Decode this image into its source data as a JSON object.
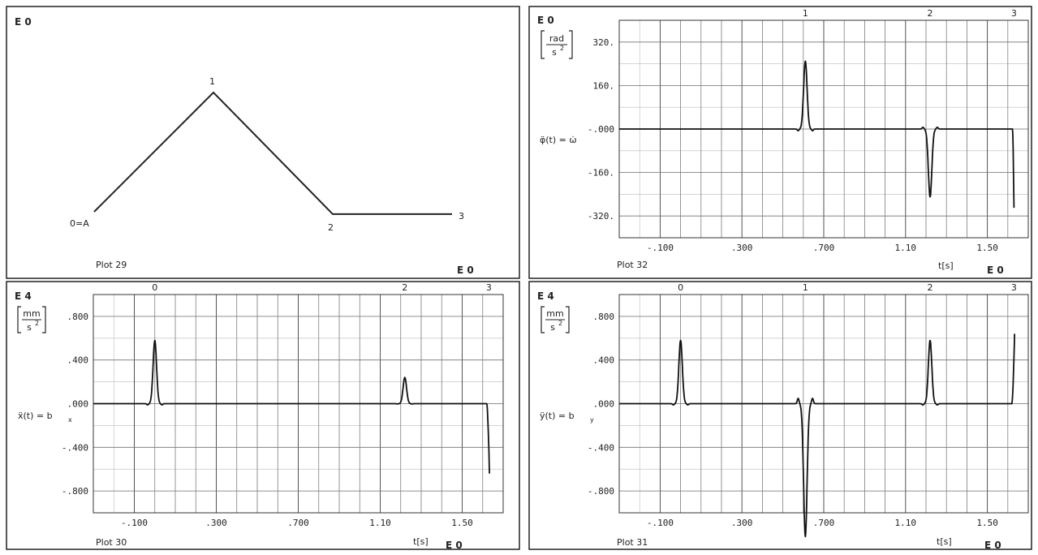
{
  "charts": {
    "plot29": {
      "type": "line",
      "plot_label": "Plot 29",
      "exp_top": "E 0",
      "exp_bottom": "E 0",
      "points": [
        {
          "label": "0=A",
          "x": 0,
          "y": 0
        },
        {
          "label": "1",
          "x": 1,
          "y": 1
        },
        {
          "label": "2",
          "x": 2,
          "y": -0.02
        },
        {
          "label": "3",
          "x": 3,
          "y": -0.02
        }
      ]
    },
    "plot32": {
      "type": "line",
      "plot_label": "Plot 32",
      "exp_top": "E 0",
      "exp_bottom": "E 0",
      "unit_num": "rad",
      "unit_den": "s",
      "unit_den_exp": "2",
      "ylabel": "φ̈(t) = ω̇",
      "xlabel": "t[s]",
      "ylim": [
        -400,
        400
      ],
      "y_ticks": [
        320,
        160,
        0,
        -160,
        -320
      ],
      "y_tick_labels": [
        "320.",
        "160.",
        "-.000",
        "-160.",
        "-320."
      ],
      "xlim": [
        -0.3,
        1.7
      ],
      "x_ticks": [
        -0.1,
        0.3,
        0.7,
        1.1,
        1.5
      ],
      "x_tick_labels": [
        "-.100",
        ".300",
        ".700",
        "1.10",
        "1.50"
      ],
      "markers": [
        {
          "label": "1",
          "x": 0.61
        },
        {
          "label": "2",
          "x": 1.22
        },
        {
          "label": "3",
          "x": 1.63
        }
      ],
      "pulses": [
        {
          "center": 0.61,
          "amp": 250,
          "side_dip": 0.025
        },
        {
          "center": 1.22,
          "amp": -250,
          "side_dip": 0.025
        }
      ],
      "end_drop": {
        "start": 1.623,
        "end": 1.63,
        "end_value": -290
      },
      "end_x": 1.63
    },
    "plot30": {
      "type": "line",
      "plot_label": "Plot 30",
      "exp_top": "E 4",
      "exp_bottom": "E 0",
      "unit_num": "mm",
      "unit_den": "s",
      "unit_den_exp": "2",
      "ylabel": "ẍ(t) = b",
      "ylabel_sub": "x",
      "xlabel": "t[s]",
      "ylim": [
        -1.0,
        1.0
      ],
      "y_ticks": [
        0.8,
        0.4,
        0,
        -0.4,
        -0.8
      ],
      "y_tick_labels": [
        ".800",
        ".400",
        ".000",
        "-.400",
        "-.800"
      ],
      "xlim": [
        -0.3,
        1.7
      ],
      "x_ticks": [
        -0.1,
        0.3,
        0.7,
        1.1,
        1.5
      ],
      "x_tick_labels": [
        "-.100",
        ".300",
        ".700",
        "1.10",
        "1.50"
      ],
      "markers": [
        {
          "label": "0",
          "x": 0.0
        },
        {
          "label": "2",
          "x": 1.22
        },
        {
          "label": "3",
          "x": 1.63
        }
      ],
      "pulses": [
        {
          "center": 0.0,
          "amp": 0.58,
          "side_dip": 0.02
        },
        {
          "center": 1.22,
          "amp": 0.24,
          "side_dip": 0.01
        }
      ],
      "end_drop": {
        "start": 1.62,
        "end": 1.633,
        "end_value": -0.64
      },
      "end_x": 1.633
    },
    "plot31": {
      "type": "line",
      "plot_label": "Plot 31",
      "exp_top": "E 4",
      "exp_bottom": "E 0",
      "unit_num": "mm",
      "unit_den": "s",
      "unit_den_exp": "2",
      "ylabel": "ÿ(t) = b",
      "ylabel_sub": "y",
      "xlabel": "t[s]",
      "ylim": [
        -1.0,
        1.0
      ],
      "y_ticks": [
        0.8,
        0.4,
        0,
        -0.4,
        -0.8
      ],
      "y_tick_labels": [
        ".800",
        ".400",
        ".000",
        "-.400",
        "-.800"
      ],
      "xlim": [
        -0.3,
        1.7
      ],
      "x_ticks": [
        -0.1,
        0.3,
        0.7,
        1.1,
        1.5
      ],
      "x_tick_labels": [
        "-.100",
        ".300",
        ".700",
        "1.10",
        "1.50"
      ],
      "markers": [
        {
          "label": "0",
          "x": 0.0
        },
        {
          "label": "1",
          "x": 0.61
        },
        {
          "label": "2",
          "x": 1.22
        },
        {
          "label": "3",
          "x": 1.63
        }
      ],
      "pulses": [
        {
          "center": 0.0,
          "amp": 0.58,
          "side_dip": 0.02
        },
        {
          "center": 0.61,
          "amp": -1.22,
          "side_dip": 0.04
        },
        {
          "center": 1.22,
          "amp": 0.58,
          "side_dip": 0.02
        }
      ],
      "end_drop": {
        "start": 1.62,
        "end": 1.633,
        "end_value": 0.64
      },
      "end_x": 1.633
    }
  }
}
